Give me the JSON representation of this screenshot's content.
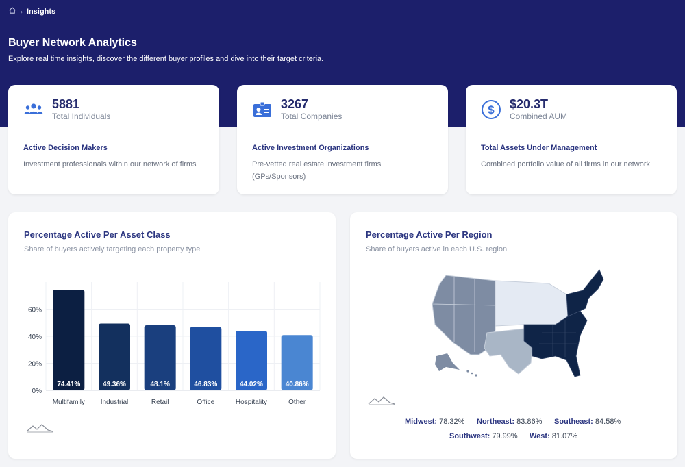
{
  "breadcrumb": {
    "home_icon": "home-icon",
    "current": "Insights"
  },
  "hero": {
    "title": "Buyer Network Analytics",
    "subtitle": "Explore real time insights, discover the different buyer profiles and dive into their target criteria."
  },
  "stats": [
    {
      "icon": "users-icon",
      "value": "5881",
      "label": "Total Individuals",
      "title": "Active Decision Makers",
      "description": "Investment professionals within our network of firms"
    },
    {
      "icon": "id-card-icon",
      "value": "3267",
      "label": "Total Companies",
      "title": "Active Investment Organizations",
      "description": "Pre-vetted real estate investment firms (GPs/Sponsors)"
    },
    {
      "icon": "dollar-icon",
      "value": "$20.3T",
      "label": "Combined AUM",
      "title": "Total Assets Under Management",
      "description": "Combined portfolio value of all firms in our network"
    }
  ],
  "asset_panel": {
    "title": "Percentage Active Per Asset Class",
    "subtitle": "Share of buyers actively targeting each property type"
  },
  "region_panel": {
    "title": "Percentage Active Per Region",
    "subtitle": "Share of buyers active in each U.S. region",
    "legend": [
      {
        "name": "Midwest:",
        "value": "78.32%"
      },
      {
        "name": "Northeast:",
        "value": "83.86%"
      },
      {
        "name": "Southeast:",
        "value": "84.58%"
      },
      {
        "name": "Southwest:",
        "value": "79.99%"
      },
      {
        "name": "West:",
        "value": "81.07%"
      }
    ]
  },
  "chart_data": {
    "type": "bar",
    "categories": [
      "Multifamily",
      "Industrial",
      "Retail",
      "Office",
      "Hospitality",
      "Other"
    ],
    "values": [
      74.41,
      49.36,
      48.1,
      46.83,
      44.02,
      40.86
    ],
    "data_labels": [
      "74.41%",
      "49.36%",
      "48.1%",
      "46.83%",
      "44.02%",
      "40.86%"
    ],
    "y_ticks": [
      "0%",
      "20%",
      "40%",
      "60%"
    ],
    "ylim": [
      0,
      80
    ],
    "grid": true,
    "colors": [
      "#0c1f42",
      "#13305e",
      "#1a3f7e",
      "#1f4fa0",
      "#2a66c8",
      "#4a86d2"
    ]
  },
  "colors": {
    "hero_bg": "#1c1f6b",
    "accent": "#2b3580",
    "icon_blue": "#3a6fd9",
    "map_southeast": "#0f2447",
    "map_west": "#7e8ca3",
    "map_midwest": "#e4eaf3",
    "map_southwest": "#a9b6c6",
    "map_northeast": "#0f2447"
  }
}
